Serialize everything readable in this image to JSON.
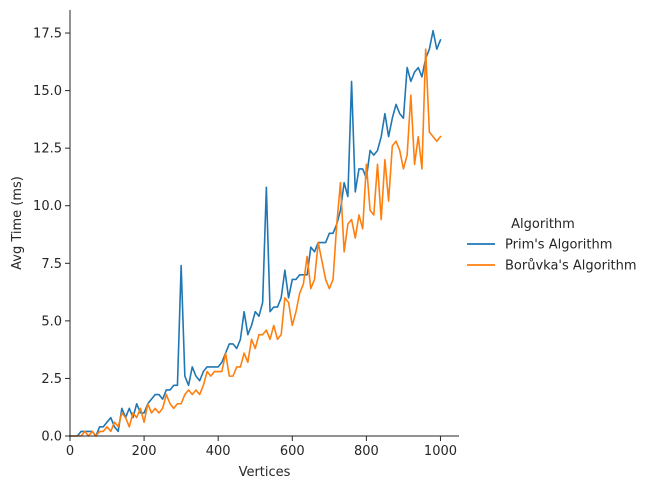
{
  "chart_data": {
    "type": "line",
    "xlabel": "Vertices",
    "ylabel": "Avg Time (ms)",
    "xlim": [
      0,
      1050
    ],
    "ylim": [
      0,
      18.5
    ],
    "xticks": [
      0,
      200,
      400,
      600,
      800,
      1000
    ],
    "xtick_labels": [
      "0",
      "200",
      "400",
      "600",
      "800",
      "1000"
    ],
    "yticks": [
      0,
      2.5,
      5,
      7.5,
      10,
      12.5,
      15,
      17.5
    ],
    "ytick_labels": [
      "0.0",
      "2.5",
      "5.0",
      "7.5",
      "10.0",
      "12.5",
      "15.0",
      "17.5"
    ],
    "grid": false,
    "legend": {
      "title": "Algorithm",
      "placement": "right"
    },
    "x": [
      0,
      10,
      20,
      30,
      40,
      50,
      60,
      70,
      80,
      90,
      100,
      110,
      120,
      130,
      140,
      150,
      160,
      170,
      180,
      190,
      200,
      210,
      220,
      230,
      240,
      250,
      260,
      270,
      280,
      290,
      300,
      310,
      320,
      330,
      340,
      350,
      360,
      370,
      380,
      390,
      400,
      410,
      420,
      430,
      440,
      450,
      460,
      470,
      480,
      490,
      500,
      510,
      520,
      530,
      540,
      550,
      560,
      570,
      580,
      590,
      600,
      610,
      620,
      630,
      640,
      650,
      660,
      670,
      680,
      690,
      700,
      710,
      720,
      730,
      740,
      750,
      760,
      770,
      780,
      790,
      800,
      810,
      820,
      830,
      840,
      850,
      860,
      870,
      880,
      890,
      900,
      910,
      920,
      930,
      940,
      950,
      960,
      970,
      980,
      990,
      1000
    ],
    "series": [
      {
        "name": "Prim's Algorithm",
        "color": "#1f77b4",
        "values": [
          0.0,
          0.0,
          0.0,
          0.2,
          0.2,
          0.2,
          0.2,
          0.0,
          0.4,
          0.4,
          0.6,
          0.8,
          0.4,
          0.2,
          1.2,
          0.8,
          1.2,
          0.8,
          1.4,
          1.0,
          1.0,
          1.4,
          1.6,
          1.8,
          1.8,
          1.6,
          2.0,
          2.0,
          2.2,
          2.2,
          7.4,
          2.6,
          2.2,
          3.0,
          2.6,
          2.4,
          2.8,
          3.0,
          3.0,
          3.0,
          3.0,
          3.2,
          3.6,
          4.0,
          4.0,
          3.8,
          4.2,
          5.4,
          4.4,
          4.8,
          5.4,
          5.2,
          5.8,
          10.8,
          5.4,
          5.6,
          5.6,
          6.0,
          7.2,
          6.0,
          6.8,
          6.8,
          7.0,
          7.0,
          7.0,
          8.2,
          8.0,
          8.4,
          8.4,
          8.4,
          8.8,
          8.8,
          9.2,
          9.8,
          11.0,
          10.4,
          15.4,
          10.6,
          11.6,
          11.6,
          11.2,
          12.4,
          12.2,
          12.4,
          13.0,
          14.0,
          13.0,
          13.8,
          14.4,
          14.0,
          13.8,
          16.0,
          15.4,
          15.8,
          16.0,
          15.6,
          16.4,
          16.8,
          17.6,
          16.8,
          17.2
        ]
      },
      {
        "name": "Borůvka's Algorithm",
        "color": "#ff7f0e",
        "values": [
          0.0,
          0.0,
          0.0,
          0.0,
          0.2,
          0.0,
          0.2,
          0.0,
          0.2,
          0.2,
          0.4,
          0.2,
          0.6,
          0.4,
          1.0,
          0.8,
          0.4,
          1.0,
          0.8,
          1.2,
          0.6,
          1.4,
          1.0,
          1.2,
          1.0,
          1.2,
          1.8,
          1.4,
          1.2,
          1.4,
          1.4,
          1.8,
          2.0,
          1.8,
          2.0,
          1.8,
          2.2,
          2.8,
          2.6,
          2.8,
          2.8,
          2.8,
          3.6,
          2.6,
          2.6,
          3.0,
          3.0,
          3.6,
          3.2,
          4.2,
          3.8,
          4.4,
          4.4,
          4.6,
          4.2,
          4.8,
          4.2,
          4.4,
          6.0,
          5.8,
          4.8,
          5.4,
          6.2,
          6.6,
          7.8,
          6.4,
          6.8,
          8.4,
          7.6,
          6.8,
          6.4,
          6.8,
          9.2,
          11.0,
          8.0,
          9.2,
          9.4,
          8.6,
          9.6,
          9.0,
          11.8,
          9.8,
          9.6,
          11.8,
          9.4,
          12.0,
          10.2,
          12.6,
          12.8,
          12.4,
          11.6,
          12.2,
          14.8,
          11.8,
          13.0,
          11.6,
          16.8,
          13.2,
          13.0,
          12.8,
          13.0
        ]
      }
    ]
  }
}
